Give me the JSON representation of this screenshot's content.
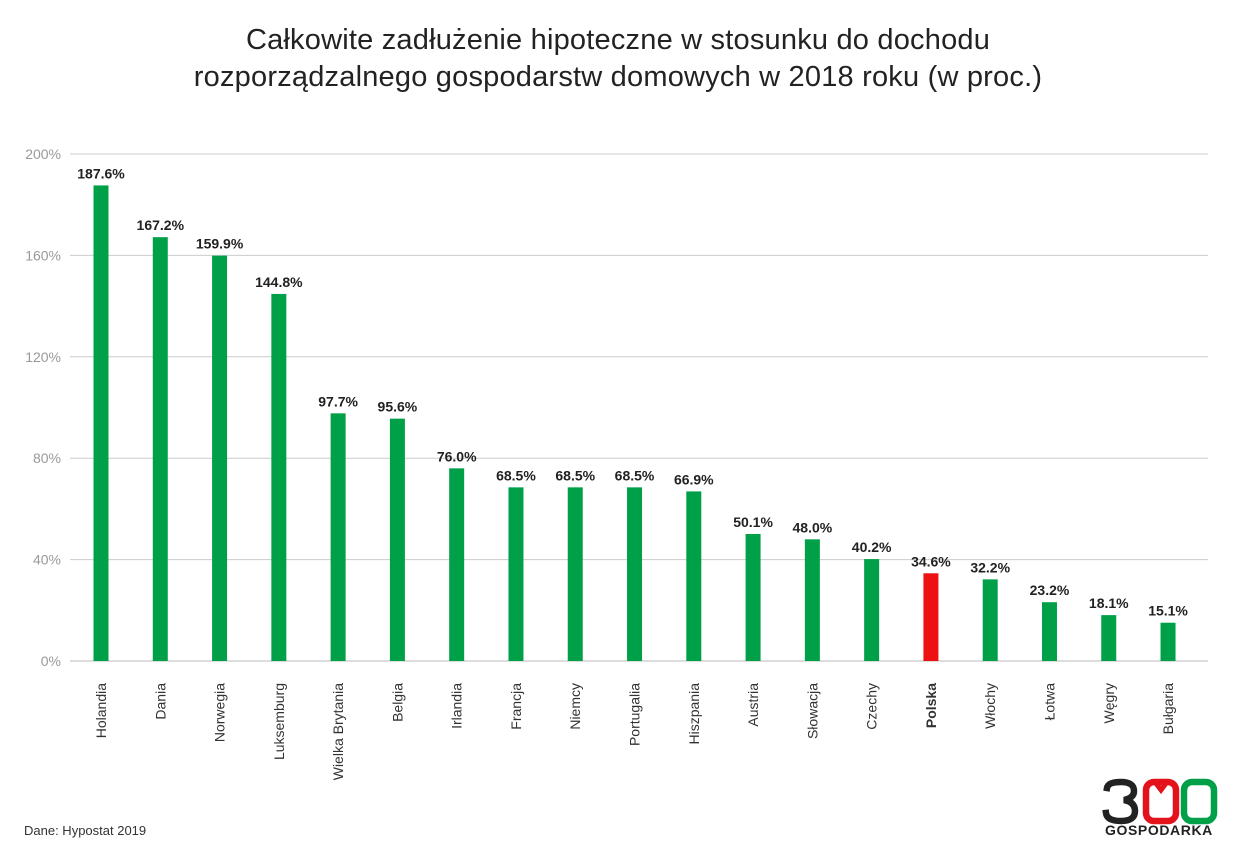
{
  "title": {
    "line1": "Całkowite zadłużenie hipoteczne w stosunku do dochodu",
    "line2": "rozporządzalnego gospodarstw domowych w 2018 roku (w proc.)"
  },
  "source": "Dane: Hypostat 2019",
  "logo": {
    "number": "300",
    "word": "GOSPODARKA"
  },
  "colors": {
    "bar": "#00a049",
    "highlight": "#ee1111",
    "grid": "#cccccc",
    "axis_text": "#999999"
  },
  "chart_data": {
    "type": "bar",
    "title": "Całkowite zadłużenie hipoteczne w stosunku do dochodu rozporządzalnego gospodarstw domowych w 2018 roku (w proc.)",
    "categories": [
      "Holandia",
      "Dania",
      "Norwegia",
      "Luksemburg",
      "Wielka Brytania",
      "Belgia",
      "Irlandia",
      "Francja",
      "Niemcy",
      "Portugalia",
      "Hiszpania",
      "Austria",
      "Słowacja",
      "Czechy",
      "Polska",
      "Włochy",
      "Łotwa",
      "Węgry",
      "Bułgaria"
    ],
    "values": [
      187.6,
      167.2,
      159.9,
      144.8,
      97.7,
      95.6,
      76.0,
      68.5,
      68.5,
      68.5,
      66.9,
      50.1,
      48.0,
      40.2,
      34.6,
      32.2,
      23.2,
      18.1,
      15.1
    ],
    "value_labels": [
      "187.6%",
      "167.2%",
      "159.9%",
      "144.8%",
      "97.7%",
      "95.6%",
      "76.0%",
      "68.5%",
      "68.5%",
      "68.5%",
      "66.9%",
      "50.1%",
      "48.0%",
      "40.2%",
      "34.6%",
      "32.2%",
      "23.2%",
      "18.1%",
      "15.1%"
    ],
    "highlight": "Polska",
    "yticks": [
      "0%",
      "40%",
      "80%",
      "120%",
      "160%",
      "200%"
    ],
    "ylim": [
      0,
      200
    ],
    "grid": true,
    "xlabel": "",
    "ylabel": ""
  }
}
